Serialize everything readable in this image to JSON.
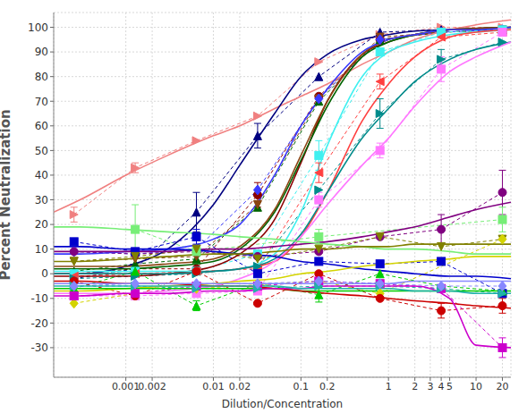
{
  "chart_data": {
    "type": "line",
    "x_label": "Dilution/Concentration",
    "y_label": "Percent Neutralization",
    "log": "x",
    "grid": true,
    "xlim": [
      0.00015,
      25
    ],
    "ylim": [
      -42,
      106
    ],
    "xticks": [
      0.001,
      0.002,
      0.01,
      0.02,
      0.1,
      0.2,
      1,
      2,
      3,
      4,
      5,
      10,
      20
    ],
    "yticks": [
      -30,
      -20,
      -10,
      0,
      10,
      20,
      30,
      40,
      50,
      60,
      70,
      80,
      90,
      100
    ],
    "x": [
      0.000256,
      0.00128,
      0.0064,
      0.032,
      0.16,
      0.8,
      4,
      20
    ],
    "fit_x": [
      0.00015,
      0.0003,
      0.001,
      0.003,
      0.01,
      0.02,
      0.05,
      0.1,
      0.2,
      0.5,
      1,
      2,
      5,
      10,
      25
    ],
    "series": [
      {
        "color": "#f08080",
        "marker": "triangle-right",
        "line_style": "dashed",
        "values": [
          24,
          43,
          54,
          64,
          86,
          97,
          100,
          100
        ],
        "errors": [
          3,
          2,
          null,
          null,
          null,
          null,
          null,
          null
        ],
        "fit": [
          25,
          30,
          40,
          48,
          56,
          60,
          67,
          72,
          77,
          85,
          90,
          95,
          99,
          101,
          103
        ]
      },
      {
        "color": "#000080",
        "marker": "triangle-up",
        "line_style": "dashed",
        "values": [
          -2,
          2,
          25,
          56,
          80,
          98,
          99,
          99
        ],
        "errors": [
          null,
          null,
          8,
          5,
          null,
          null,
          null,
          null
        ],
        "fit": [
          0,
          0,
          3,
          10,
          28,
          44,
          65,
          80,
          89,
          95,
          97,
          98.5,
          99,
          99.5,
          100
        ]
      },
      {
        "color": "#8b0000",
        "marker": "circle",
        "line_style": "dashed",
        "values": [
          0,
          2,
          2,
          32,
          72,
          95,
          98,
          99
        ],
        "errors": [
          null,
          null,
          null,
          5,
          null,
          null,
          null,
          null
        ],
        "fit": [
          -1,
          -1,
          -1,
          0,
          3,
          8,
          22,
          45,
          70,
          89,
          94,
          97,
          99,
          99.5,
          100
        ]
      },
      {
        "color": "#006400",
        "marker": "triangle-up",
        "line_style": "dashed",
        "values": [
          1,
          4,
          6,
          27,
          70,
          95,
          98,
          99
        ],
        "errors": [
          null,
          null,
          null,
          null,
          null,
          null,
          null,
          null
        ],
        "fit": [
          2,
          2,
          2,
          3,
          5,
          10,
          25,
          46,
          68,
          88,
          94,
          97,
          99,
          99.5,
          100
        ]
      },
      {
        "color": "#8b4513",
        "marker": "triangle-down",
        "line_style": "dashed",
        "values": [
          5,
          6,
          7,
          28,
          71,
          96,
          98,
          99
        ],
        "errors": [
          null,
          null,
          null,
          null,
          null,
          null,
          null,
          null
        ],
        "fit": [
          3,
          3,
          3,
          4,
          6,
          11,
          26,
          48,
          70,
          89,
          95,
          97,
          99,
          99.5,
          100
        ]
      },
      {
        "color": "#3a3aff",
        "marker": "diamond",
        "line_style": "dashed",
        "values": [
          9,
          8,
          10,
          34,
          71,
          95,
          98,
          99
        ],
        "errors": [
          null,
          null,
          null,
          null,
          null,
          null,
          null,
          null
        ],
        "fit": [
          8,
          8,
          9,
          10,
          14,
          20,
          40,
          60,
          75,
          90,
          95,
          97,
          99,
          99,
          100
        ]
      },
      {
        "color": "#40f0f0",
        "marker": "square",
        "line_style": "dashed",
        "values": [
          0,
          1,
          1,
          8,
          48,
          90,
          98,
          99
        ],
        "errors": [
          null,
          null,
          null,
          null,
          6,
          null,
          null,
          null
        ],
        "fit": [
          1,
          1,
          1,
          1,
          1,
          2,
          8,
          25,
          52,
          80,
          90,
          94,
          97,
          98,
          99
        ]
      },
      {
        "color": "#ff4040",
        "marker": "triangle-left",
        "line_style": "dashed",
        "values": [
          -1,
          0,
          1,
          2,
          41,
          78,
          96,
          98
        ],
        "errors": [
          null,
          null,
          null,
          null,
          4,
          3,
          null,
          null
        ],
        "fit": [
          0,
          0,
          0,
          0,
          1,
          2,
          5,
          15,
          33,
          62,
          77,
          88,
          96,
          98,
          99
        ]
      },
      {
        "color": "#008b8b",
        "marker": "triangle-right",
        "line_style": "dashed",
        "values": [
          -2,
          -1,
          0,
          3,
          34,
          65,
          87,
          94
        ],
        "errors": [
          null,
          null,
          null,
          null,
          null,
          6,
          4,
          null
        ],
        "fit": [
          0,
          0,
          0,
          0,
          1,
          2,
          6,
          16,
          33,
          55,
          67,
          78,
          87,
          91,
          94
        ]
      },
      {
        "color": "#ff77ff",
        "marker": "square",
        "line_style": "dashed",
        "values": [
          -9,
          -9,
          -8,
          -7,
          30,
          50,
          83,
          98
        ],
        "errors": [
          null,
          null,
          null,
          null,
          3,
          3,
          5,
          null
        ],
        "fit": [
          -8,
          -8,
          -8,
          -7,
          -5,
          -2,
          5,
          15,
          28,
          44,
          55,
          68,
          82,
          88,
          94
        ]
      },
      {
        "color": "#800080",
        "marker": "circle",
        "line_style": "dashed",
        "values": [
          9,
          8,
          9,
          7,
          9,
          15,
          18,
          33
        ],
        "errors": [
          null,
          null,
          null,
          null,
          null,
          null,
          6,
          9
        ],
        "fit": [
          9,
          9,
          9,
          9,
          10,
          10,
          11,
          12,
          13,
          15,
          17,
          19,
          23,
          26,
          29
        ]
      },
      {
        "color": "#77ee77",
        "marker": "square",
        "line_style": "dashed",
        "values": [
          null,
          18,
          9,
          null,
          15,
          null,
          null,
          22
        ],
        "errors": [
          null,
          10,
          null,
          null,
          3,
          null,
          null,
          5
        ],
        "fit": [
          19,
          19,
          18,
          17,
          16,
          15,
          14,
          13,
          12,
          11,
          10,
          10,
          9,
          8,
          8
        ]
      },
      {
        "color": "#0000cc",
        "marker": "square",
        "line_style": "dashed",
        "values": [
          13,
          9,
          15,
          0,
          5,
          4,
          5,
          -8
        ],
        "errors": [
          null,
          null,
          3,
          null,
          null,
          null,
          null,
          null
        ],
        "fit": [
          11,
          11,
          10,
          10,
          9,
          8,
          7,
          5,
          4,
          2,
          1,
          0,
          -1,
          -1,
          -2
        ]
      },
      {
        "color": "#808000",
        "marker": "triangle-down",
        "line_style": "dashed",
        "values": [
          5,
          7,
          10,
          6,
          10,
          15,
          11,
          14
        ],
        "errors": [
          null,
          null,
          null,
          null,
          null,
          null,
          null,
          null
        ],
        "fit": [
          5,
          5,
          6,
          7,
          8,
          8,
          9,
          10,
          10,
          11,
          11,
          12,
          12,
          12,
          12
        ]
      },
      {
        "color": "#d4d400",
        "marker": "diamond",
        "line_style": "dashed",
        "values": [
          -12,
          -8,
          -6,
          null,
          -3,
          -8,
          null,
          14
        ],
        "errors": [
          null,
          null,
          null,
          null,
          null,
          null,
          null,
          null
        ],
        "fit": [
          -7,
          -7,
          -6,
          -5,
          -4,
          -3,
          -2,
          0,
          1,
          3,
          4,
          5,
          6,
          7,
          7
        ]
      },
      {
        "color": "#00cc00",
        "marker": "triangle-up",
        "line_style": "dashed",
        "values": [
          -6,
          1,
          -13,
          -4,
          -8.5,
          0,
          -5,
          -7
        ],
        "errors": [
          null,
          null,
          2,
          null,
          3,
          null,
          null,
          null
        ],
        "fit": [
          -6,
          -6,
          -6,
          -6,
          -6,
          -6,
          -6,
          -7,
          -7,
          -7,
          -7,
          -7,
          -7,
          -7,
          -7
        ]
      },
      {
        "color": "#cc0000",
        "marker": "circle",
        "line_style": "dashed",
        "values": [
          -3,
          -9,
          1,
          -12,
          0,
          -10,
          -15,
          -13
        ],
        "errors": [
          null,
          null,
          null,
          null,
          null,
          null,
          3,
          3
        ],
        "fit": [
          -3,
          -3,
          -4,
          -4,
          -5,
          -5,
          -6,
          -7,
          -8,
          -9,
          -10,
          -11,
          -12,
          -13,
          -14
        ]
      },
      {
        "color": "#cc00cc",
        "marker": "square",
        "line_style": "dashed",
        "values": [
          -9,
          -8,
          -5,
          -5,
          -3,
          -4,
          -6,
          -30
        ],
        "errors": [
          null,
          null,
          null,
          null,
          null,
          null,
          null,
          4
        ],
        "fit": [
          -9,
          -9,
          -8,
          -8,
          -7,
          -7,
          -6,
          -6,
          -5,
          -5,
          -5,
          -5,
          -10,
          -29,
          -30
        ]
      },
      {
        "color": "#20b2aa",
        "marker": "triangle-right",
        "line_style": "dashed",
        "values": [
          -5,
          -5,
          -6,
          -6,
          -5,
          -5,
          -6,
          -8
        ],
        "errors": [
          null,
          null,
          null,
          null,
          null,
          null,
          null,
          null
        ],
        "fit": [
          -5,
          -5,
          -5,
          -5,
          -5,
          -5,
          -5,
          -6,
          -6,
          -6,
          -6,
          -7,
          -7,
          -8,
          -8
        ]
      },
      {
        "color": "#8888ff",
        "marker": "diamond",
        "line_style": "dashed",
        "values": [
          -5,
          -4,
          -4,
          -4,
          -3,
          -4,
          -5,
          -5
        ],
        "errors": [
          null,
          null,
          null,
          null,
          null,
          null,
          null,
          null
        ],
        "fit": [
          -4,
          -4,
          -4,
          -4,
          -4,
          -4,
          -4,
          -4,
          -4,
          -4,
          -4,
          -3,
          -3,
          -3,
          -3
        ]
      }
    ]
  }
}
